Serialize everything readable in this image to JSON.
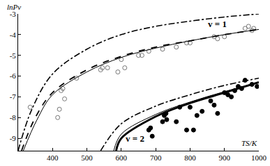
{
  "chart_data": {
    "type": "scatter",
    "x_label": "TS/K",
    "y_label": "lnPv",
    "xlim": [
      300,
      1000
    ],
    "ylim": [
      -9.6,
      -3
    ],
    "xticks": [
      400,
      500,
      600,
      700,
      800,
      900,
      1000
    ],
    "yticks": [
      -3,
      -4,
      -5,
      -6,
      -7,
      -8,
      -9
    ],
    "grid": false,
    "series": [
      {
        "type": "scatter",
        "marker": "open-circle",
        "color": "#777777",
        "x": [
          335,
          415,
          420,
          425,
          430,
          435,
          470,
          540,
          545,
          560,
          590,
          600,
          610,
          650,
          660,
          680,
          720,
          760,
          790,
          800,
          870,
          880,
          900,
          960,
          970,
          980,
          985
        ],
        "values": [
          -7.5,
          -8.0,
          -7.6,
          -6.7,
          -6.6,
          -7.1,
          -6.1,
          -5.7,
          -5.6,
          -5.6,
          -5.8,
          -5.2,
          -5.6,
          -5.0,
          -5.0,
          -4.8,
          -4.7,
          -4.6,
          -4.4,
          -4.4,
          -4.1,
          -4.2,
          -4.1,
          -3.7,
          -3.6,
          -3.8,
          -3.7
        ]
      },
      {
        "type": "scatter",
        "marker": "circle",
        "color": "#000000",
        "x": [
          680,
          685,
          690,
          720,
          725,
          730,
          732,
          760,
          770,
          790,
          800,
          810,
          820,
          835,
          860,
          870,
          880,
          900,
          910,
          920,
          930,
          940,
          950,
          960,
          980,
          995
        ],
        "values": [
          -8.6,
          -8.5,
          -8.9,
          -8.2,
          -7.9,
          -7.8,
          -8.1,
          -8.2,
          -7.5,
          -8.6,
          -7.5,
          -8.6,
          -7.9,
          -7.7,
          -7.2,
          -7.4,
          -7.8,
          -6.8,
          -6.9,
          -7.0,
          -6.7,
          -6.5,
          -6.6,
          -6.2,
          -6.4,
          -6.5
        ]
      },
      {
        "type": "line",
        "line_style": "dashdot",
        "color": "#000000",
        "x": [
          300,
          340,
          400,
          500,
          600,
          700,
          800,
          900,
          1000
        ],
        "values": [
          -9.6,
          -7.6,
          -5.9,
          -4.7,
          -4.0,
          -3.6,
          -3.35,
          -3.15,
          -3.0
        ]
      },
      {
        "type": "line",
        "line_style": "dash",
        "color": "#000000",
        "x": [
          310,
          350,
          400,
          500,
          600,
          700,
          800,
          900,
          1000
        ],
        "values": [
          -9.6,
          -8.0,
          -6.8,
          -5.7,
          -5.05,
          -4.6,
          -4.3,
          -4.0,
          -3.75
        ]
      },
      {
        "type": "line",
        "line_style": "solid",
        "color": "#000000",
        "x": [
          315,
          355,
          400,
          500,
          600,
          700,
          800,
          900,
          1000
        ],
        "values": [
          -9.6,
          -8.1,
          -6.9,
          -5.8,
          -5.1,
          -4.65,
          -4.3,
          -4.0,
          -3.75
        ]
      },
      {
        "type": "line",
        "line_style": "dashdot",
        "color": "#000000",
        "x": [
          540,
          600,
          700,
          800,
          900,
          1000
        ],
        "values": [
          -9.6,
          -8.3,
          -7.45,
          -6.9,
          -6.45,
          -6.1
        ]
      },
      {
        "type": "line",
        "line_style": "solid",
        "color": "#000000",
        "x": [
          578,
          600,
          700,
          800,
          900,
          1000
        ],
        "values": [
          -9.6,
          -8.8,
          -7.85,
          -7.25,
          -6.75,
          -6.3
        ]
      },
      {
        "type": "line",
        "line_style": "thick",
        "color": "#000000",
        "x": [
          585,
          600,
          700,
          800,
          900,
          1000
        ],
        "values": [
          -9.6,
          -9.0,
          -7.95,
          -7.3,
          -6.8,
          -6.3
        ]
      }
    ],
    "annotations": [
      {
        "text": "v = 1",
        "x": 880,
        "y": -3.5
      },
      {
        "text": "v = 2",
        "x": 640,
        "y": -9.0
      }
    ]
  }
}
